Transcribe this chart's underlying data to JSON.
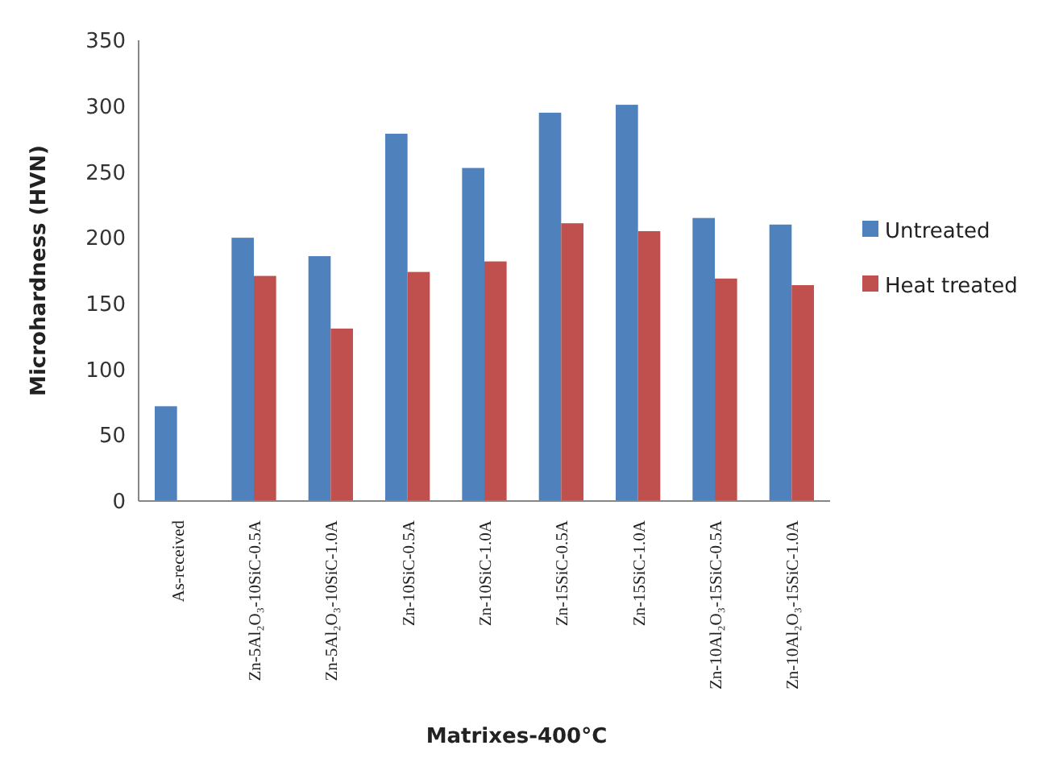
{
  "chart_data": {
    "type": "bar",
    "xlabel": "Matrixes-400°C",
    "ylabel": "Microhardness (HVN)",
    "categories": [
      "As-received",
      "Zn-5Al₂O₃-10SiC-0.5A",
      "Zn-5Al₂O₃-10SiC-1.0A",
      "Zn-10SiC-0.5A",
      "Zn-10SiC-1.0A",
      "Zn-15SiC-0.5A",
      "Zn-15SiC-1.0A",
      "Zn-10Al₂O₃-15SiC-0.5A",
      "Zn-10Al₂O₃-15SiC-1.0A"
    ],
    "series": [
      {
        "name": "Untreated",
        "color": "#4f81bd",
        "values": [
          72,
          200,
          186,
          279,
          253,
          295,
          301,
          215,
          210
        ]
      },
      {
        "name": "Heat treated",
        "color": "#c0504d",
        "values": [
          null,
          171,
          131,
          174,
          182,
          211,
          205,
          169,
          164
        ]
      }
    ],
    "ylim": [
      0,
      350
    ],
    "yticks": [
      0,
      50,
      100,
      150,
      200,
      250,
      300,
      350
    ],
    "grid": false,
    "legend": "right"
  }
}
